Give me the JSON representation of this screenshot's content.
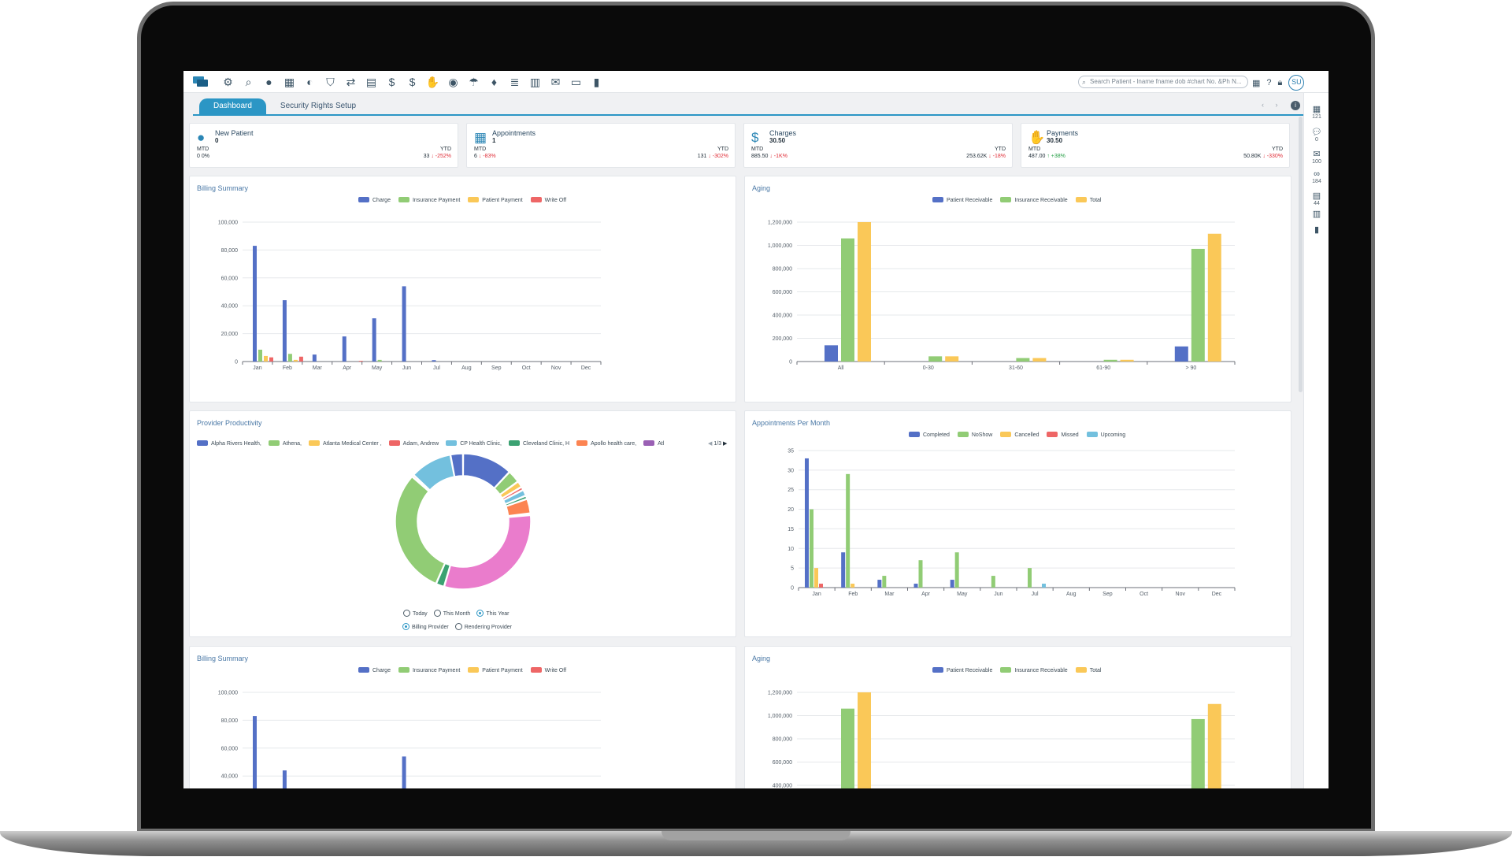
{
  "toolbar": {
    "icons": [
      "gear-icon",
      "search-icon",
      "user-icon",
      "calendar-icon",
      "user-shield-icon",
      "shield-check-icon",
      "transfer-icon",
      "document-icon",
      "dollar-icon",
      "dollar-exchange-icon",
      "hand-pay-icon",
      "money-bag-icon",
      "hands-pay-icon",
      "coin-bag-icon",
      "list-icon",
      "ledger-icon",
      "mail-open-icon",
      "card-transfer-icon",
      "bar-chart-icon"
    ],
    "search_placeholder": "Search Patient - lname fname dob #chart No. &Ph N...",
    "avatar": "SU"
  },
  "tabs": [
    {
      "label": "Dashboard",
      "active": true
    },
    {
      "label": "Security Rights Setup",
      "active": false
    }
  ],
  "rail": [
    {
      "icon": "calendar-list-icon",
      "count": "121"
    },
    {
      "icon": "chat-icon",
      "count": "0"
    },
    {
      "icon": "envelope-icon",
      "count": "100"
    },
    {
      "icon": "voicemail-icon",
      "count": "184"
    },
    {
      "icon": "fax-icon",
      "count": "44"
    },
    {
      "icon": "clipboard-icon",
      "count": ""
    },
    {
      "icon": "note-icon",
      "count": ""
    }
  ],
  "stats": [
    {
      "title": "New Patient",
      "value": "0",
      "mtd_label": "MTD",
      "mtd_value": "0 0%",
      "mtd_change": "",
      "ytd_label": "YTD",
      "ytd_value": "33",
      "ytd_change": "↓ -252%"
    },
    {
      "title": "Appointments",
      "value": "1",
      "mtd_label": "MTD",
      "mtd_value": "6",
      "mtd_change": "↓ -83%",
      "ytd_label": "YTD",
      "ytd_value": "131",
      "ytd_change": "↓ -302%"
    },
    {
      "title": "Charges",
      "value": "30.50",
      "mtd_label": "MTD",
      "mtd_value": "885.50",
      "mtd_change": "↓ -1K%",
      "ytd_label": "YTD",
      "ytd_value": "253.62K",
      "ytd_change": "↓ -18%"
    },
    {
      "title": "Payments",
      "value": "30.50",
      "mtd_label": "MTD",
      "mtd_value": "487.00",
      "mtd_change": "↑ +38%",
      "ytd_label": "YTD",
      "ytd_value": "50.80K",
      "ytd_change": "↓ -330%"
    }
  ],
  "colors": {
    "blue": "#5470c6",
    "green": "#91cc75",
    "yellow": "#fac858",
    "red": "#ee6666",
    "lightblue": "#73c0de",
    "teal": "#3ba272",
    "orange": "#fc8452",
    "purple": "#9a60b4",
    "pink": "#ea7ccc"
  },
  "panels": {
    "billing_title": "Billing Summary",
    "aging_title": "Aging",
    "provider_title": "Provider Productivity",
    "appointments_title": "Appointments Per Month",
    "billing_title_2": "Billing Summary",
    "aging_title_2": "Aging"
  },
  "provider": {
    "legend": [
      "Alpha Rivers Health,",
      "Athena,",
      "Atlanta Medical Center ,",
      "Adam, Andrew",
      "CP Health Clinic,",
      "Cleveland Clinic, H",
      "Apollo health care,",
      "Atl"
    ],
    "pager": "1/3",
    "period_options": [
      {
        "label": "Today",
        "selected": false
      },
      {
        "label": "This Month",
        "selected": false
      },
      {
        "label": "This Year",
        "selected": true
      }
    ],
    "provider_options": [
      {
        "label": "Billing Provider",
        "selected": true
      },
      {
        "label": "Rendering Provider",
        "selected": false
      }
    ]
  },
  "chart_data": [
    {
      "type": "bar",
      "title": "Billing Summary",
      "categories": [
        "Jan",
        "Feb",
        "Mar",
        "Apr",
        "May",
        "Jun",
        "Jul",
        "Aug",
        "Sep",
        "Oct",
        "Nov",
        "Dec"
      ],
      "ylim": [
        0,
        100000
      ],
      "yticks": [
        "0",
        "20,000",
        "40,000",
        "60,000",
        "80,000",
        "100,000"
      ],
      "legend_position": "top-center",
      "series": [
        {
          "name": "Charge",
          "values": [
            83000,
            44000,
            5000,
            18000,
            31000,
            54000,
            1000,
            0,
            0,
            0,
            0,
            0
          ]
        },
        {
          "name": "Insurance Payment",
          "values": [
            8500,
            5500,
            0,
            0,
            1200,
            0,
            0,
            0,
            0,
            0,
            0,
            0
          ]
        },
        {
          "name": "Patient Payment",
          "values": [
            4000,
            1200,
            0,
            0,
            0,
            0,
            0,
            0,
            0,
            0,
            0,
            0
          ]
        },
        {
          "name": "Write Off",
          "values": [
            3000,
            3500,
            0,
            500,
            0,
            0,
            0,
            0,
            0,
            0,
            0,
            0
          ]
        }
      ]
    },
    {
      "type": "bar",
      "title": "Aging",
      "categories": [
        "All",
        "0-30",
        "31-60",
        "61-90",
        "> 90"
      ],
      "ylim": [
        0,
        1200000
      ],
      "yticks": [
        "0",
        "200,000",
        "400,000",
        "600,000",
        "800,000",
        "1,000,000",
        "1,200,000"
      ],
      "legend_position": "top-center",
      "series": [
        {
          "name": "Patient Receivable",
          "values": [
            140000,
            0,
            0,
            0,
            130000
          ]
        },
        {
          "name": "Insurance Receivable",
          "values": [
            1060000,
            45000,
            30000,
            15000,
            970000
          ]
        },
        {
          "name": "Total",
          "values": [
            1200000,
            45000,
            30000,
            15000,
            1100000
          ]
        }
      ]
    },
    {
      "type": "pie",
      "title": "Provider Productivity",
      "slices": [
        {
          "name": "Alpha Rivers Health,",
          "value": 12,
          "color": "#5470c6"
        },
        {
          "name": "Athena,",
          "value": 3,
          "color": "#91cc75"
        },
        {
          "name": "Atlanta Medical Center ,",
          "value": 1.5,
          "color": "#fac858"
        },
        {
          "name": "Adam, Andrew",
          "value": 0.8,
          "color": "#ee6666"
        },
        {
          "name": "CP Health Clinic,",
          "value": 1.5,
          "color": "#73c0de"
        },
        {
          "name": "Cleveland Clinic, H",
          "value": 0.8,
          "color": "#3ba272"
        },
        {
          "name": "Apollo health care,",
          "value": 3.5,
          "color": "#fc8452"
        },
        {
          "name": "Atl",
          "value": 0.4,
          "color": "#9a60b4"
        },
        {
          "name": "",
          "value": 31,
          "color": "#ea7ccc"
        },
        {
          "name": "",
          "value": 2,
          "color": "#3ba272"
        },
        {
          "name": "",
          "value": 30,
          "color": "#91cc75"
        },
        {
          "name": "",
          "value": 0.5,
          "color": "#ee6666"
        },
        {
          "name": "",
          "value": 10,
          "color": "#73c0de"
        },
        {
          "name": "",
          "value": 3,
          "color": "#5470c6"
        }
      ]
    },
    {
      "type": "bar",
      "title": "Appointments Per Month",
      "categories": [
        "Jan",
        "Feb",
        "Mar",
        "Apr",
        "May",
        "Jun",
        "Jul",
        "Aug",
        "Sep",
        "Oct",
        "Nov",
        "Dec"
      ],
      "ylim": [
        0,
        35
      ],
      "yticks": [
        "0",
        "5",
        "10",
        "15",
        "20",
        "25",
        "30",
        "35"
      ],
      "legend_position": "top-center",
      "series": [
        {
          "name": "Completed",
          "values": [
            33,
            9,
            2,
            1,
            2,
            0,
            0,
            0,
            0,
            0,
            0,
            0
          ]
        },
        {
          "name": "NoShow",
          "values": [
            20,
            29,
            3,
            7,
            9,
            3,
            5,
            0,
            0,
            0,
            0,
            0
          ]
        },
        {
          "name": "Cancelled",
          "values": [
            5,
            1,
            0,
            0,
            0,
            0,
            0,
            0,
            0,
            0,
            0,
            0
          ]
        },
        {
          "name": "Missed",
          "values": [
            1,
            0,
            0,
            0,
            0,
            0,
            0,
            0,
            0,
            0,
            0,
            0
          ]
        },
        {
          "name": "Upcoming",
          "values": [
            0,
            0,
            0,
            0,
            0,
            0,
            1,
            0,
            0,
            0,
            0,
            0
          ]
        }
      ]
    }
  ]
}
